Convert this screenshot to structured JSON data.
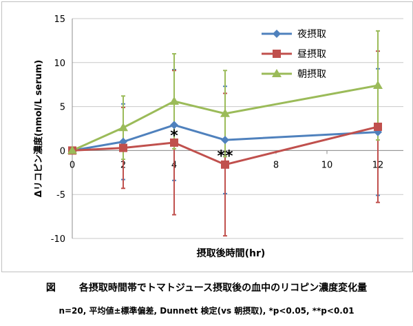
{
  "chart_data": {
    "type": "line",
    "title": "",
    "xlabel": "摂取後時間(hr)",
    "ylabel": "Δリコピン濃度(nmol/L serum)",
    "xlim": [
      0,
      13
    ],
    "ylim": [
      -10,
      15
    ],
    "xticks": [
      0,
      2,
      4,
      6,
      8,
      10,
      12
    ],
    "yticks": [
      -10,
      -5,
      0,
      5,
      10,
      15
    ],
    "grid": "horizontal",
    "legend_position": "top-right",
    "series": [
      {
        "name": "夜摂取",
        "color": "#4f81bd",
        "marker": "diamond",
        "x": [
          0,
          2,
          4,
          6,
          12
        ],
        "y": [
          0,
          1.0,
          2.9,
          1.2,
          2.1
        ],
        "err": [
          0,
          4.3,
          6.3,
          6.1,
          7.2
        ]
      },
      {
        "name": "昼摂取",
        "color": "#c0504d",
        "marker": "square",
        "x": [
          0,
          2,
          4,
          6,
          12
        ],
        "y": [
          0,
          0.3,
          0.9,
          -1.6,
          2.7
        ],
        "err": [
          0,
          4.6,
          8.2,
          8.1,
          8.6
        ]
      },
      {
        "name": "朝摂取",
        "color": "#9bbb59",
        "marker": "triangle",
        "x": [
          0,
          2,
          4,
          6,
          12
        ],
        "y": [
          0,
          2.6,
          5.6,
          4.2,
          7.4
        ],
        "err": [
          0,
          3.6,
          5.4,
          4.9,
          6.2
        ]
      }
    ],
    "annotations": [
      {
        "text": "*",
        "x": 4,
        "y": 1.9
      },
      {
        "text": "**",
        "x": 6,
        "y": -0.4
      }
    ]
  },
  "caption": {
    "figure_label": "図",
    "title": "各摂取時間帯でトマトジュース摂取後の血中のリコピン濃度変化量",
    "note": "n=20, 平均値±標準偏差, Dunnett 検定(vs 朝摂取), *p<0.05, **p<0.01"
  }
}
